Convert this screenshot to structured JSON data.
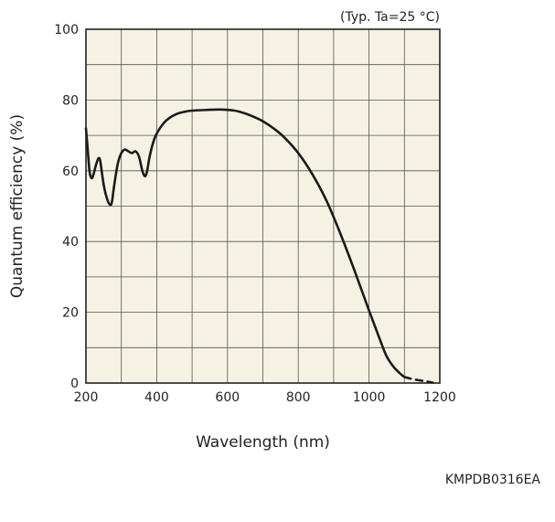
{
  "chart_data": {
    "type": "line",
    "title": "",
    "annotation": "(Typ. Ta=25 °C)",
    "xlabel": "Wavelength (nm)",
    "ylabel": "Quantum efficiency (%)",
    "xlim": [
      200,
      1200
    ],
    "ylim": [
      0,
      100
    ],
    "xticks": [
      "200",
      "400",
      "600",
      "800",
      "1000",
      "1200"
    ],
    "yticks": [
      "0",
      "20",
      "40",
      "60",
      "80",
      "100"
    ],
    "x_minor_step": 100,
    "y_minor_step": 10,
    "grid": true,
    "plot_background": "#f5f2e4",
    "grid_color": "#555555",
    "line_color": "#1a1a1a",
    "series": [
      {
        "style": "solid",
        "points": [
          [
            200,
            72
          ],
          [
            205,
            66
          ],
          [
            210,
            60
          ],
          [
            215,
            58
          ],
          [
            220,
            58.5
          ],
          [
            228,
            61.5
          ],
          [
            235,
            63.5
          ],
          [
            240,
            63
          ],
          [
            245,
            59.5
          ],
          [
            252,
            55
          ],
          [
            260,
            52
          ],
          [
            267,
            50.5
          ],
          [
            273,
            51
          ],
          [
            280,
            56
          ],
          [
            290,
            62
          ],
          [
            300,
            65
          ],
          [
            310,
            66
          ],
          [
            320,
            65.5
          ],
          [
            330,
            65
          ],
          [
            340,
            65.5
          ],
          [
            350,
            64
          ],
          [
            358,
            60.5
          ],
          [
            363,
            59
          ],
          [
            368,
            58.5
          ],
          [
            373,
            60
          ],
          [
            380,
            64
          ],
          [
            390,
            68
          ],
          [
            400,
            70.5
          ],
          [
            420,
            73.5
          ],
          [
            440,
            75.2
          ],
          [
            460,
            76.2
          ],
          [
            480,
            76.7
          ],
          [
            500,
            77
          ],
          [
            540,
            77.2
          ],
          [
            580,
            77.3
          ],
          [
            620,
            77
          ],
          [
            650,
            76.2
          ],
          [
            680,
            75
          ],
          [
            700,
            74
          ],
          [
            730,
            72
          ],
          [
            760,
            69.5
          ],
          [
            800,
            65
          ],
          [
            840,
            59
          ],
          [
            880,
            51.5
          ],
          [
            920,
            42
          ],
          [
            960,
            31.5
          ],
          [
            1000,
            20.5
          ],
          [
            1030,
            12.5
          ],
          [
            1050,
            7.5
          ],
          [
            1070,
            4.5
          ],
          [
            1090,
            2.5
          ],
          [
            1100,
            1.7
          ]
        ]
      },
      {
        "style": "dashed",
        "points": [
          [
            1100,
            1.7
          ],
          [
            1120,
            1.2
          ],
          [
            1140,
            0.8
          ],
          [
            1160,
            0.5
          ],
          [
            1180,
            0.1
          ]
        ]
      }
    ]
  },
  "figure_code": "KMPDB0316EA"
}
